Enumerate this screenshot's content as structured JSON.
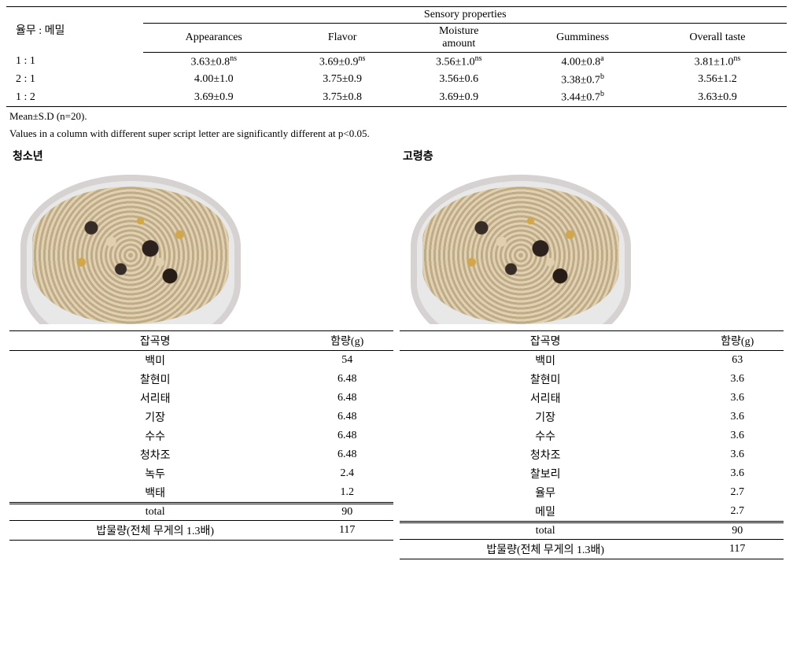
{
  "sensory": {
    "group_header": "Sensory properties",
    "label_header": "율무 : 메밀",
    "columns": [
      "Appearances",
      "Flavor",
      "Moisture amount",
      "Gumminess",
      "Overall taste"
    ],
    "rows": [
      {
        "label": "1 : 1",
        "cells": [
          "3.63±0.8",
          "3.69±0.9",
          "3.56±1.0",
          "4.00±0.8",
          "3.81±1.0"
        ],
        "sup": [
          "ns",
          "ns",
          "ns",
          "a",
          "ns"
        ]
      },
      {
        "label": "2 : 1",
        "cells": [
          "4.00±1.0",
          "3.75±0.9",
          "3.56±0.6",
          "3.38±0.7",
          "3.56±1.2"
        ],
        "sup": [
          "",
          "",
          "",
          "b",
          ""
        ]
      },
      {
        "label": "1 : 2",
        "cells": [
          "3.69±0.9",
          "3.75±0.8",
          "3.69±0.9",
          "3.44±0.7",
          "3.63±0.9"
        ],
        "sup": [
          "",
          "",
          "",
          "b",
          ""
        ]
      }
    ],
    "footnote1": "Mean±S.D (n=20).",
    "footnote2": "Values in a column with different super script letter are significantly different at p<0.05."
  },
  "left": {
    "title": "청소년",
    "headers": [
      "잡곡명",
      "함량(g)"
    ],
    "rows": [
      [
        "백미",
        "54"
      ],
      [
        "찰현미",
        "6.48"
      ],
      [
        "서리태",
        "6.48"
      ],
      [
        "기장",
        "6.48"
      ],
      [
        "수수",
        "6.48"
      ],
      [
        "청차조",
        "6.48"
      ],
      [
        "녹두",
        "2.4"
      ],
      [
        "백태",
        "1.2"
      ]
    ],
    "total_label": "total",
    "total_value": "90",
    "water_label": "밥물량(전체 무게의 1.3배)",
    "water_value": "117"
  },
  "right": {
    "title": "고령층",
    "headers": [
      "잡곡명",
      "함량(g)"
    ],
    "rows": [
      [
        "백미",
        "63"
      ],
      [
        "찰현미",
        "3.6"
      ],
      [
        "서리태",
        "3.6"
      ],
      [
        "기장",
        "3.6"
      ],
      [
        "수수",
        "3.6"
      ],
      [
        "청차조",
        "3.6"
      ],
      [
        "찰보리",
        "3.6"
      ],
      [
        "율무",
        "2.7"
      ],
      [
        "메밀",
        "2.7"
      ]
    ],
    "total_label": "total",
    "total_value": "90",
    "water_label": "밥물량(전체 무게의 1.3배)",
    "water_value": "117"
  }
}
